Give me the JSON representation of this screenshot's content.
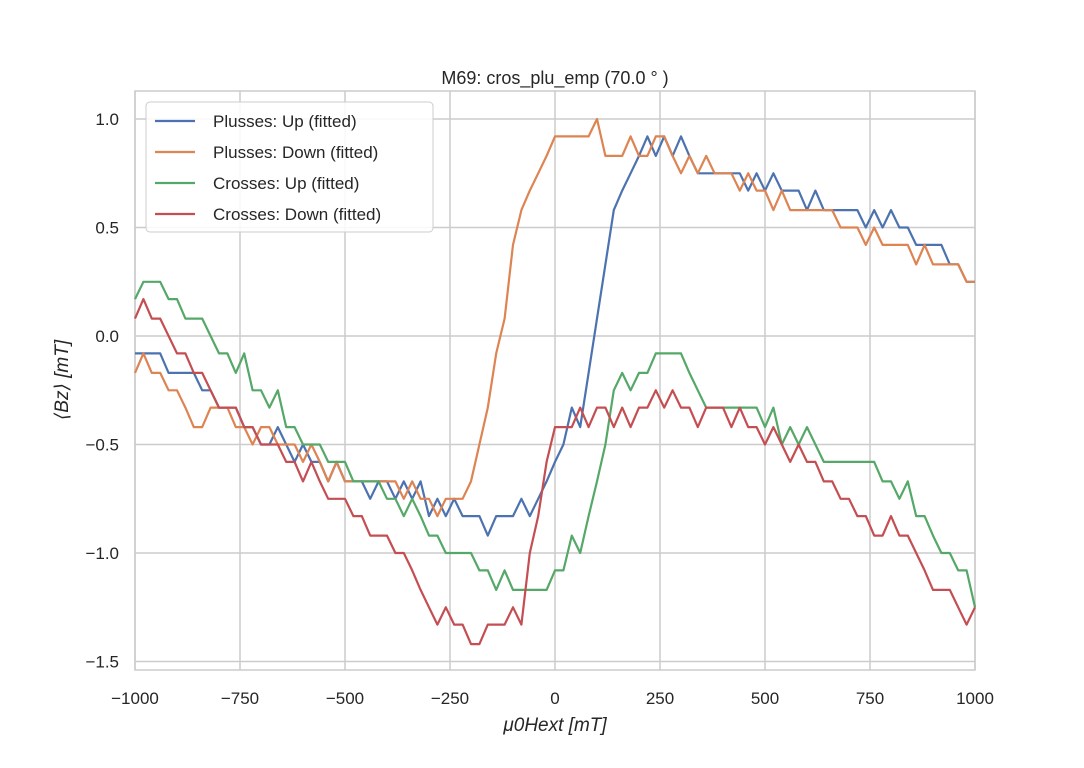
{
  "chart_data": {
    "type": "line",
    "title": "M69: cros_plu_emp (70.0 ° )",
    "xlabel": "μ0Hext [mT]",
    "ylabel": "⟨Bz⟩ [mT]",
    "xlim": [
      -1000,
      1000
    ],
    "ylim": [
      -1.54,
      1.1
    ],
    "xticks": [
      -1000,
      -750,
      -500,
      -250,
      0,
      250,
      500,
      750,
      1000
    ],
    "xtick_labels": [
      "−1000",
      "−750",
      "−500",
      "−250",
      "0",
      "250",
      "500",
      "750",
      "1000"
    ],
    "yticks": [
      1.0,
      0.5,
      0.0,
      -0.5,
      -1.0,
      -1.5
    ],
    "ytick_labels": [
      "1.0",
      "0.5",
      "0.0",
      "−0.5",
      "−1.0",
      "−1.5"
    ],
    "grid": true,
    "legend_position": "top-left",
    "x": [
      -1000,
      -980,
      -960,
      -940,
      -920,
      -900,
      -880,
      -860,
      -840,
      -820,
      -800,
      -780,
      -760,
      -740,
      -720,
      -700,
      -680,
      -660,
      -640,
      -620,
      -600,
      -580,
      -560,
      -540,
      -520,
      -500,
      -480,
      -460,
      -440,
      -420,
      -400,
      -380,
      -360,
      -340,
      -320,
      -300,
      -280,
      -260,
      -240,
      -220,
      -200,
      -180,
      -160,
      -140,
      -120,
      -100,
      -80,
      -60,
      -40,
      -20,
      0,
      20,
      40,
      60,
      80,
      100,
      120,
      140,
      160,
      180,
      200,
      220,
      240,
      260,
      280,
      300,
      320,
      340,
      360,
      380,
      400,
      420,
      440,
      460,
      480,
      500,
      520,
      540,
      560,
      580,
      600,
      620,
      640,
      660,
      680,
      700,
      720,
      740,
      760,
      780,
      800,
      820,
      840,
      860,
      880,
      900,
      920,
      940,
      960,
      980,
      1000
    ],
    "series": [
      {
        "name": "Plusses: Up (fitted)",
        "color": "#4c72b0",
        "values": [
          -0.08,
          -0.08,
          -0.08,
          -0.08,
          -0.17,
          -0.17,
          -0.17,
          -0.17,
          -0.25,
          -0.25,
          -0.33,
          -0.33,
          -0.33,
          -0.42,
          -0.42,
          -0.5,
          -0.5,
          -0.42,
          -0.5,
          -0.58,
          -0.5,
          -0.58,
          -0.58,
          -0.67,
          -0.58,
          -0.67,
          -0.67,
          -0.67,
          -0.75,
          -0.67,
          -0.67,
          -0.75,
          -0.67,
          -0.75,
          -0.67,
          -0.83,
          -0.75,
          -0.83,
          -0.75,
          -0.83,
          -0.83,
          -0.83,
          -0.92,
          -0.83,
          -0.83,
          -0.83,
          -0.75,
          -0.83,
          -0.75,
          -0.67,
          -0.58,
          -0.5,
          -0.33,
          -0.42,
          -0.17,
          0.08,
          0.33,
          0.58,
          0.67,
          0.75,
          0.83,
          0.92,
          0.83,
          0.92,
          0.83,
          0.92,
          0.83,
          0.75,
          0.75,
          0.75,
          0.75,
          0.75,
          0.75,
          0.67,
          0.75,
          0.67,
          0.75,
          0.67,
          0.67,
          0.67,
          0.58,
          0.67,
          0.58,
          0.58,
          0.58,
          0.58,
          0.58,
          0.5,
          0.58,
          0.5,
          0.58,
          0.5,
          0.5,
          0.42,
          0.42,
          0.42,
          0.42,
          0.33,
          0.33,
          0.25,
          0.25
        ]
      },
      {
        "name": "Plusses: Down (fitted)",
        "color": "#dd8452",
        "values": [
          -0.17,
          -0.08,
          -0.17,
          -0.17,
          -0.25,
          -0.25,
          -0.33,
          -0.42,
          -0.42,
          -0.33,
          -0.33,
          -0.33,
          -0.42,
          -0.42,
          -0.5,
          -0.42,
          -0.42,
          -0.5,
          -0.5,
          -0.5,
          -0.58,
          -0.5,
          -0.58,
          -0.67,
          -0.58,
          -0.67,
          -0.67,
          -0.67,
          -0.67,
          -0.67,
          -0.67,
          -0.67,
          -0.75,
          -0.67,
          -0.75,
          -0.75,
          -0.83,
          -0.75,
          -0.75,
          -0.75,
          -0.67,
          -0.5,
          -0.33,
          -0.08,
          0.08,
          0.42,
          0.58,
          0.67,
          0.75,
          0.83,
          0.92,
          0.92,
          0.92,
          0.92,
          0.92,
          1.0,
          0.83,
          0.83,
          0.83,
          0.92,
          0.83,
          0.83,
          0.92,
          0.92,
          0.83,
          0.75,
          0.83,
          0.75,
          0.83,
          0.75,
          0.75,
          0.75,
          0.67,
          0.75,
          0.67,
          0.67,
          0.58,
          0.67,
          0.58,
          0.58,
          0.58,
          0.58,
          0.58,
          0.58,
          0.5,
          0.5,
          0.5,
          0.42,
          0.5,
          0.42,
          0.42,
          0.42,
          0.42,
          0.33,
          0.42,
          0.33,
          0.33,
          0.33,
          0.33,
          0.25,
          0.25
        ]
      },
      {
        "name": "Crosses: Up (fitted)",
        "color": "#55a868",
        "values": [
          0.17,
          0.25,
          0.25,
          0.25,
          0.17,
          0.17,
          0.08,
          0.08,
          0.08,
          0.0,
          -0.08,
          -0.08,
          -0.17,
          -0.08,
          -0.25,
          -0.25,
          -0.33,
          -0.25,
          -0.42,
          -0.42,
          -0.5,
          -0.5,
          -0.5,
          -0.58,
          -0.58,
          -0.58,
          -0.67,
          -0.67,
          -0.67,
          -0.67,
          -0.75,
          -0.75,
          -0.83,
          -0.75,
          -0.83,
          -0.92,
          -0.92,
          -1.0,
          -1.0,
          -1.0,
          -1.0,
          -1.08,
          -1.08,
          -1.17,
          -1.08,
          -1.17,
          -1.17,
          -1.17,
          -1.17,
          -1.17,
          -1.08,
          -1.08,
          -0.92,
          -1.0,
          -0.83,
          -0.67,
          -0.5,
          -0.25,
          -0.17,
          -0.25,
          -0.17,
          -0.17,
          -0.08,
          -0.08,
          -0.08,
          -0.08,
          -0.17,
          -0.25,
          -0.33,
          -0.33,
          -0.33,
          -0.33,
          -0.33,
          -0.33,
          -0.33,
          -0.42,
          -0.33,
          -0.5,
          -0.42,
          -0.5,
          -0.42,
          -0.5,
          -0.58,
          -0.58,
          -0.58,
          -0.58,
          -0.58,
          -0.58,
          -0.58,
          -0.67,
          -0.67,
          -0.75,
          -0.67,
          -0.83,
          -0.83,
          -0.92,
          -1.0,
          -1.0,
          -1.08,
          -1.08,
          -1.25
        ]
      },
      {
        "name": "Crosses: Down (fitted)",
        "color": "#c44e52",
        "values": [
          0.08,
          0.17,
          0.08,
          0.08,
          0.0,
          -0.08,
          -0.08,
          -0.17,
          -0.17,
          -0.25,
          -0.33,
          -0.33,
          -0.33,
          -0.42,
          -0.42,
          -0.5,
          -0.5,
          -0.5,
          -0.58,
          -0.58,
          -0.67,
          -0.58,
          -0.67,
          -0.75,
          -0.75,
          -0.75,
          -0.83,
          -0.83,
          -0.92,
          -0.92,
          -0.92,
          -1.0,
          -1.0,
          -1.08,
          -1.17,
          -1.25,
          -1.33,
          -1.25,
          -1.33,
          -1.33,
          -1.42,
          -1.42,
          -1.33,
          -1.33,
          -1.33,
          -1.25,
          -1.33,
          -1.0,
          -0.83,
          -0.58,
          -0.42,
          -0.42,
          -0.42,
          -0.33,
          -0.42,
          -0.33,
          -0.33,
          -0.42,
          -0.33,
          -0.42,
          -0.33,
          -0.33,
          -0.25,
          -0.33,
          -0.25,
          -0.33,
          -0.33,
          -0.42,
          -0.33,
          -0.33,
          -0.33,
          -0.42,
          -0.33,
          -0.42,
          -0.42,
          -0.5,
          -0.42,
          -0.5,
          -0.58,
          -0.5,
          -0.58,
          -0.58,
          -0.67,
          -0.67,
          -0.75,
          -0.75,
          -0.83,
          -0.83,
          -0.92,
          -0.92,
          -0.83,
          -0.92,
          -0.92,
          -1.0,
          -1.08,
          -1.17,
          -1.17,
          -1.17,
          -1.25,
          -1.33,
          -1.25
        ]
      }
    ]
  }
}
